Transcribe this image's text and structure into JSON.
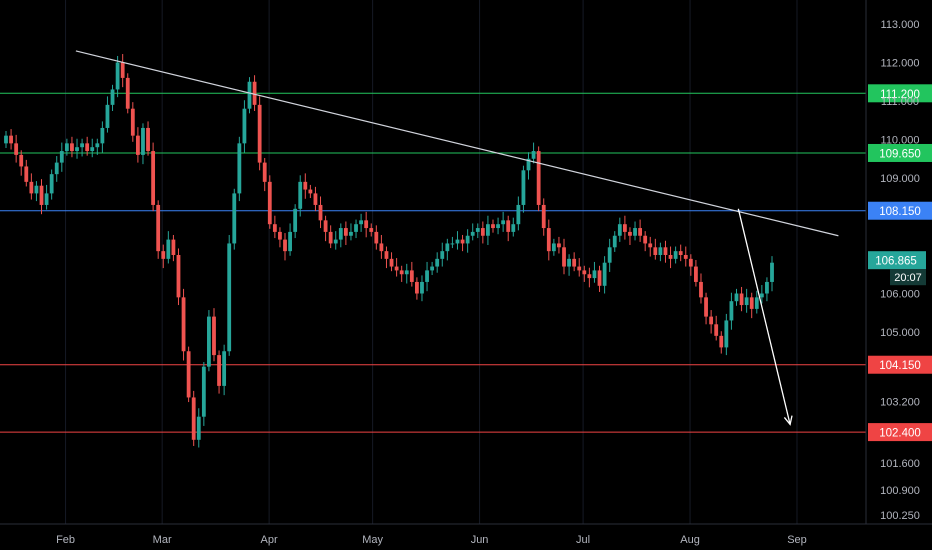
{
  "chart_data": {
    "type": "candlestick",
    "title": "",
    "xlabel": "",
    "ylabel": "",
    "ylim": [
      100.0,
      113.5
    ],
    "y_tick_labels": [
      "113.000",
      "112.000",
      "111.000",
      "110.000",
      "109.000",
      "106.000",
      "105.000",
      "103.200",
      "101.600",
      "100.900",
      "100.250"
    ],
    "x_tick_labels": [
      {
        "label": "Feb",
        "x": "2021-02-01"
      },
      {
        "label": "Mar",
        "x": "2021-03-01"
      },
      {
        "label": "Apr",
        "x": "2021-04-01"
      },
      {
        "label": "May",
        "x": "2021-05-01"
      },
      {
        "label": "Jun",
        "x": "2021-06-01"
      },
      {
        "label": "Jul",
        "x": "2021-07-01"
      },
      {
        "label": "Aug",
        "x": "2021-08-01"
      },
      {
        "label": "Sep",
        "x": "2021-09-01"
      }
    ],
    "x_range": [
      "2021-01-13",
      "2021-09-21"
    ],
    "closes": [
      110.1,
      109.9,
      109.6,
      109.3,
      108.9,
      108.6,
      108.8,
      108.3,
      108.6,
      109.1,
      109.4,
      109.7,
      109.9,
      109.7,
      109.8,
      109.9,
      109.7,
      109.8,
      109.9,
      110.3,
      110.9,
      111.3,
      112.0,
      111.6,
      110.8,
      110.1,
      109.6,
      110.3,
      109.7,
      108.3,
      107.1,
      106.9,
      107.4,
      107.0,
      105.9,
      104.5,
      103.3,
      102.2,
      102.8,
      104.1,
      105.4,
      104.4,
      103.6,
      104.5,
      107.3,
      108.6,
      109.9,
      110.8,
      111.5,
      110.9,
      109.4,
      108.9,
      107.8,
      107.6,
      107.4,
      107.1,
      107.6,
      108.2,
      108.9,
      108.7,
      108.6,
      108.3,
      107.9,
      107.6,
      107.3,
      107.4,
      107.7,
      107.5,
      107.6,
      107.8,
      107.9,
      107.7,
      107.6,
      107.3,
      107.1,
      106.9,
      106.7,
      106.6,
      106.5,
      106.6,
      106.3,
      106.0,
      106.3,
      106.6,
      106.7,
      106.9,
      107.1,
      107.3,
      107.3,
      107.4,
      107.3,
      107.5,
      107.6,
      107.7,
      107.5,
      107.8,
      107.7,
      107.8,
      107.9,
      107.6,
      107.8,
      108.3,
      109.2,
      109.5,
      109.7,
      108.3,
      107.7,
      107.1,
      107.3,
      107.2,
      106.7,
      106.9,
      106.7,
      106.6,
      106.5,
      106.4,
      106.6,
      106.2,
      106.8,
      107.2,
      107.5,
      107.8,
      107.6,
      107.5,
      107.7,
      107.5,
      107.3,
      107.2,
      107.0,
      107.2,
      107.0,
      106.9,
      107.1,
      107.0,
      106.9,
      106.7,
      106.3,
      105.9,
      105.4,
      105.2,
      104.9,
      104.6,
      105.3,
      105.8,
      106.0,
      105.7,
      105.9,
      105.6,
      105.9,
      106.0,
      106.3,
      106.8
    ],
    "current_price": "106.865",
    "countdown": "20:07",
    "levels": [
      {
        "name": "resistance-111200",
        "value": 111.2,
        "label": "111.200",
        "color": "#22c55e"
      },
      {
        "name": "resistance-109650",
        "value": 109.65,
        "label": "109.650",
        "color": "#22c55e"
      },
      {
        "name": "pivot-108150",
        "value": 108.15,
        "label": "108.150",
        "color": "#3b82f6"
      },
      {
        "name": "support-104150",
        "value": 104.15,
        "label": "104.150",
        "color": "#ef4444"
      },
      {
        "name": "support-102400",
        "value": 102.4,
        "label": "102.400",
        "color": "#ef4444"
      }
    ],
    "trendline": {
      "start": {
        "x": "2021-02-04",
        "y": 112.3
      },
      "end": {
        "x": "2021-09-13",
        "y": 107.5
      }
    },
    "projection_arrow": {
      "start": {
        "x": "2021-08-15",
        "y": 108.2
      },
      "end": {
        "x": "2021-08-30",
        "y": 102.6
      }
    },
    "colors": {
      "background": "#000000",
      "up": "#26a69a",
      "down": "#ef5350",
      "grid": "#161a25",
      "axis_text": "#b2b5be",
      "trendline": "#d1d4dc",
      "price_label": "#26a69a"
    }
  }
}
